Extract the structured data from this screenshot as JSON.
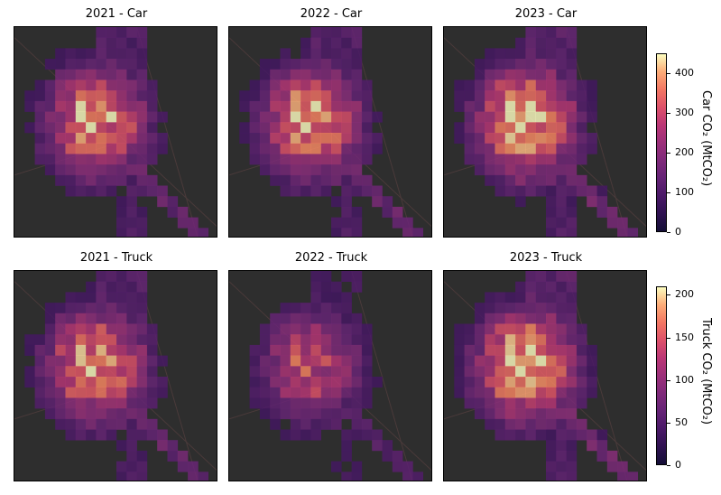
{
  "chart_data": {
    "type": "heatmap",
    "panels": [
      {
        "title": "2021 - Car",
        "vehicle": "car",
        "scale": 0.88
      },
      {
        "title": "2022 - Car",
        "vehicle": "car",
        "scale": 0.88
      },
      {
        "title": "2023 - Car",
        "vehicle": "car",
        "scale": 0.97
      },
      {
        "title": "2021 - Truck",
        "vehicle": "truck",
        "scale": 0.88
      },
      {
        "title": "2022 - Truck",
        "vehicle": "truck",
        "scale": 0.68
      },
      {
        "title": "2023 - Truck",
        "vehicle": "truck",
        "scale": 0.98
      }
    ],
    "colorbars": [
      {
        "label": "Car CO₂ (MtCO₂)",
        "min": 0,
        "max": 450,
        "ticks": [
          "0",
          "100",
          "200",
          "300",
          "400"
        ],
        "tick_values": [
          0,
          100,
          200,
          300,
          400
        ]
      },
      {
        "label": "Truck CO₂ (MtCO₂)",
        "min": 0,
        "max": 210,
        "ticks": [
          "0",
          "50",
          "100",
          "150",
          "200"
        ],
        "tick_values": [
          0,
          50,
          100,
          150,
          200
        ]
      }
    ],
    "colormap": "magma",
    "grid_rows": 20,
    "grid_cols": 20
  }
}
